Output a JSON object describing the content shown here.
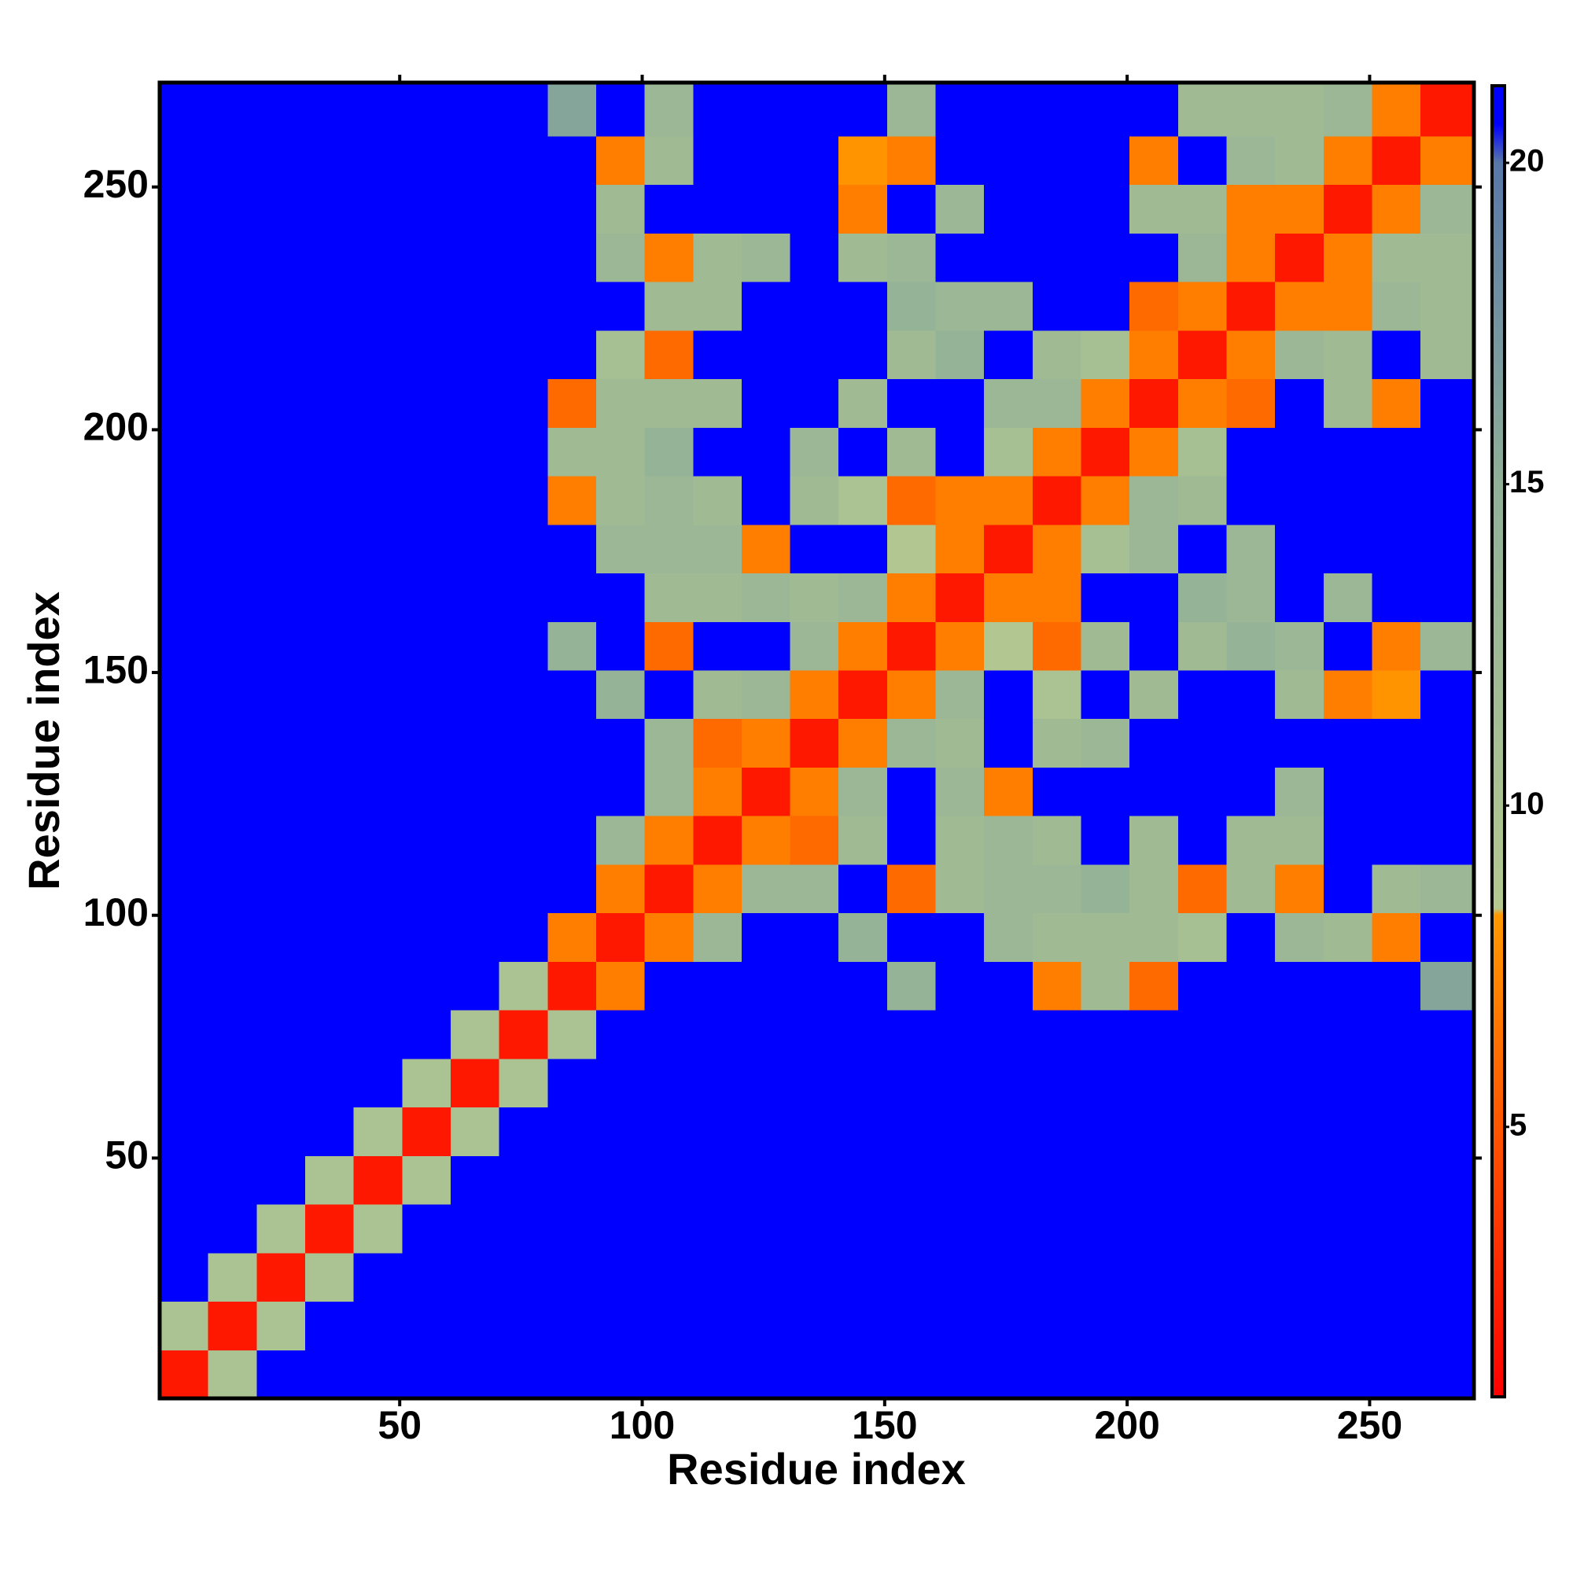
{
  "chart_data": {
    "type": "heatmap",
    "x_label": "Residue index",
    "y_label": "Residue index",
    "xlim": [
      0.5,
      271.5
    ],
    "ylim": [
      0.5,
      271.5
    ],
    "xticks": [
      50,
      100,
      150,
      200,
      250
    ],
    "yticks": [
      50,
      100,
      150,
      200,
      250
    ],
    "x_edges": [
      0.5,
      10.5,
      20.5,
      30.5,
      40.5,
      50.5,
      60.5,
      70.5,
      80.5,
      90.5,
      100.5,
      110.5,
      120.5,
      130.5,
      140.5,
      150.5,
      160.5,
      170.5,
      180.5,
      190.5,
      200.5,
      210.5,
      220.5,
      230.5,
      240.5,
      250.5,
      260.5,
      271.5
    ],
    "y_edges": [
      0.5,
      10.5,
      20.5,
      30.5,
      40.5,
      50.5,
      60.5,
      70.5,
      80.5,
      90.5,
      100.5,
      110.5,
      120.5,
      130.5,
      140.5,
      150.5,
      160.5,
      170.5,
      180.5,
      190.5,
      200.5,
      210.5,
      220.5,
      230.5,
      240.5,
      250.5,
      260.5,
      271.5
    ],
    "clim": [
      0.8,
      21.2
    ],
    "cticks": [
      5,
      10,
      15,
      20
    ],
    "colorscale": [
      [
        0.8,
        "#ff0000"
      ],
      [
        8.3,
        "#ff9900"
      ],
      [
        8.4,
        "#b4c890"
      ],
      [
        15,
        "#90b098"
      ],
      [
        20,
        "#5878a8"
      ],
      [
        20.6,
        "#0000ff"
      ],
      [
        21.2,
        "#0000ff"
      ]
    ],
    "z": [
      [
        2,
        10,
        21,
        21,
        21,
        21,
        21,
        21,
        21,
        21,
        21,
        21,
        21,
        21,
        21,
        21,
        21,
        21,
        21,
        21,
        21,
        21,
        21,
        21,
        21,
        21,
        21
      ],
      [
        10,
        2,
        10,
        21,
        21,
        21,
        21,
        21,
        21,
        21,
        21,
        21,
        21,
        21,
        21,
        21,
        21,
        21,
        21,
        21,
        21,
        21,
        21,
        21,
        21,
        21,
        21
      ],
      [
        21,
        10,
        2,
        10,
        21,
        21,
        21,
        21,
        21,
        21,
        21,
        21,
        21,
        21,
        21,
        21,
        21,
        21,
        21,
        21,
        21,
        21,
        21,
        21,
        21,
        21,
        21
      ],
      [
        21,
        21,
        10,
        2,
        10,
        21,
        21,
        21,
        21,
        21,
        21,
        21,
        21,
        21,
        21,
        21,
        21,
        21,
        21,
        21,
        21,
        21,
        21,
        21,
        21,
        21,
        21
      ],
      [
        21,
        21,
        21,
        10,
        2,
        10,
        21,
        21,
        21,
        21,
        21,
        21,
        21,
        21,
        21,
        21,
        21,
        21,
        21,
        21,
        21,
        21,
        21,
        21,
        21,
        21,
        21
      ],
      [
        21,
        21,
        21,
        21,
        10,
        2,
        10,
        21,
        21,
        21,
        21,
        21,
        21,
        21,
        21,
        21,
        21,
        21,
        21,
        21,
        21,
        21,
        21,
        21,
        21,
        21,
        21
      ],
      [
        21,
        21,
        21,
        21,
        21,
        10,
        2,
        10,
        21,
        21,
        21,
        21,
        21,
        21,
        21,
        21,
        21,
        21,
        21,
        21,
        21,
        21,
        21,
        21,
        21,
        21,
        21
      ],
      [
        21,
        21,
        21,
        21,
        21,
        21,
        10,
        2,
        10,
        21,
        21,
        21,
        21,
        21,
        21,
        21,
        21,
        21,
        21,
        21,
        21,
        21,
        21,
        21,
        21,
        21,
        21
      ],
      [
        21,
        21,
        21,
        21,
        21,
        21,
        21,
        10,
        2,
        7,
        21,
        21,
        21,
        21,
        21,
        14,
        21,
        21,
        7,
        12,
        6,
        21,
        21,
        21,
        21,
        21,
        16
      ],
      [
        21,
        21,
        21,
        21,
        21,
        21,
        21,
        21,
        7,
        2,
        7,
        13,
        21,
        21,
        14,
        21,
        21,
        13,
        12,
        12,
        12,
        11,
        21,
        13,
        12,
        7,
        21
      ],
      [
        21,
        21,
        21,
        21,
        21,
        21,
        21,
        21,
        21,
        7,
        2,
        7,
        13,
        13,
        21,
        6,
        12,
        13,
        13,
        14,
        12,
        6,
        12,
        7,
        21,
        12,
        13
      ],
      [
        21,
        21,
        21,
        21,
        21,
        21,
        21,
        21,
        21,
        13,
        7,
        2,
        7,
        6,
        12,
        21,
        12,
        13,
        12,
        21,
        12,
        21,
        12,
        12,
        21,
        21,
        21
      ],
      [
        21,
        21,
        21,
        21,
        21,
        21,
        21,
        21,
        21,
        21,
        13,
        7,
        2,
        7,
        13,
        21,
        13,
        7,
        21,
        21,
        21,
        21,
        21,
        13,
        21,
        21,
        21
      ],
      [
        21,
        21,
        21,
        21,
        21,
        21,
        21,
        21,
        21,
        21,
        13,
        6,
        7,
        2,
        7,
        13,
        12,
        21,
        12,
        13,
        21,
        21,
        21,
        21,
        21,
        21,
        21
      ],
      [
        21,
        21,
        21,
        21,
        21,
        21,
        21,
        21,
        21,
        14,
        21,
        12,
        13,
        7,
        2,
        7,
        13,
        21,
        10,
        21,
        12,
        21,
        21,
        12,
        7,
        8,
        21
      ],
      [
        21,
        21,
        21,
        21,
        21,
        21,
        21,
        21,
        14,
        21,
        6,
        21,
        21,
        13,
        7,
        2,
        7,
        9,
        6,
        12,
        21,
        12,
        14,
        13,
        21,
        7,
        13
      ],
      [
        21,
        21,
        21,
        21,
        21,
        21,
        21,
        21,
        21,
        21,
        12,
        12,
        13,
        12,
        13,
        7,
        2,
        7,
        7,
        21,
        21,
        14,
        13,
        21,
        13,
        21,
        21
      ],
      [
        21,
        21,
        21,
        21,
        21,
        21,
        21,
        21,
        21,
        13,
        13,
        13,
        7,
        21,
        21,
        9,
        7,
        2,
        7,
        11,
        13,
        21,
        13,
        21,
        21,
        21,
        21
      ],
      [
        21,
        21,
        21,
        21,
        21,
        21,
        21,
        21,
        7,
        12,
        13,
        12,
        21,
        12,
        10,
        6,
        7,
        7,
        2,
        7,
        13,
        12,
        21,
        21,
        21,
        21,
        21
      ],
      [
        21,
        21,
        21,
        21,
        21,
        21,
        21,
        21,
        12,
        12,
        14,
        21,
        21,
        13,
        21,
        12,
        21,
        11,
        7,
        2,
        7,
        11,
        21,
        21,
        21,
        21,
        21
      ],
      [
        21,
        21,
        21,
        21,
        21,
        21,
        21,
        21,
        6,
        12,
        12,
        12,
        21,
        21,
        12,
        21,
        21,
        13,
        13,
        7,
        2,
        7,
        6,
        21,
        12,
        7,
        21
      ],
      [
        21,
        21,
        21,
        21,
        21,
        21,
        21,
        21,
        21,
        11,
        6,
        21,
        21,
        21,
        21,
        12,
        14,
        21,
        12,
        11,
        7,
        2,
        7,
        13,
        12,
        21,
        12
      ],
      [
        21,
        21,
        21,
        21,
        21,
        21,
        21,
        21,
        21,
        21,
        12,
        12,
        21,
        21,
        21,
        14,
        13,
        13,
        21,
        21,
        6,
        7,
        2,
        7,
        7,
        13,
        12
      ],
      [
        21,
        21,
        21,
        21,
        21,
        21,
        21,
        21,
        21,
        13,
        7,
        12,
        13,
        21,
        12,
        13,
        21,
        21,
        21,
        21,
        21,
        13,
        7,
        2,
        7,
        12,
        12
      ],
      [
        21,
        21,
        21,
        21,
        21,
        21,
        21,
        21,
        21,
        12,
        21,
        21,
        21,
        21,
        7,
        21,
        13,
        21,
        21,
        21,
        12,
        12,
        7,
        7,
        2,
        7,
        13
      ],
      [
        21,
        21,
        21,
        21,
        21,
        21,
        21,
        21,
        21,
        7,
        12,
        21,
        21,
        21,
        8,
        7,
        21,
        21,
        21,
        21,
        7,
        21,
        13,
        12,
        7,
        2,
        7
      ],
      [
        21,
        21,
        21,
        21,
        21,
        21,
        21,
        21,
        16,
        21,
        13,
        21,
        21,
        21,
        21,
        13,
        21,
        21,
        21,
        21,
        21,
        12,
        12,
        12,
        13,
        7,
        2
      ]
    ]
  }
}
